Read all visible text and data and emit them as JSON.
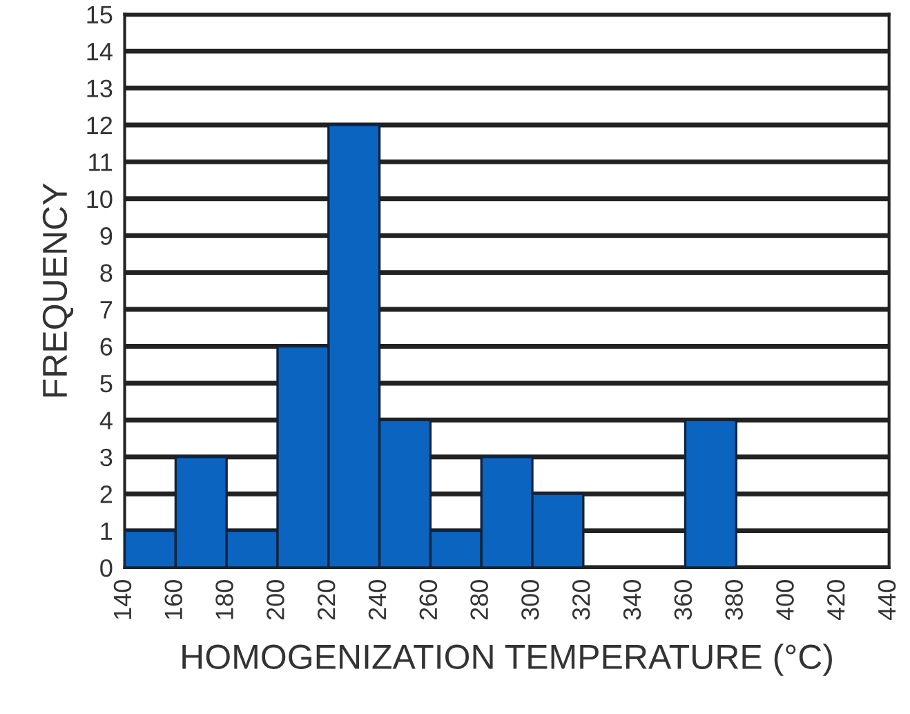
{
  "chart_data": {
    "type": "histogram",
    "xlabel": "HOMOGENIZATION TEMPERATURE (°C)",
    "ylabel": "FREQUENCY",
    "bins": [
      140,
      160,
      180,
      200,
      220,
      240,
      260,
      280,
      300,
      320,
      340,
      360,
      380,
      400,
      420,
      440
    ],
    "values": [
      1,
      3,
      1,
      6,
      12,
      4,
      1,
      3,
      2,
      0,
      0,
      4,
      0,
      0,
      0
    ],
    "color": "#0a64c0",
    "xlim": [
      140,
      440
    ],
    "xticks": [
      140,
      160,
      180,
      200,
      220,
      240,
      260,
      280,
      300,
      320,
      340,
      360,
      380,
      400,
      420,
      440
    ],
    "ylim": [
      0,
      15
    ],
    "yticks": [
      0,
      1,
      2,
      3,
      4,
      5,
      6,
      7,
      8,
      9,
      10,
      11,
      12,
      13,
      14,
      15
    ],
    "grid": "y",
    "legend": false
  }
}
